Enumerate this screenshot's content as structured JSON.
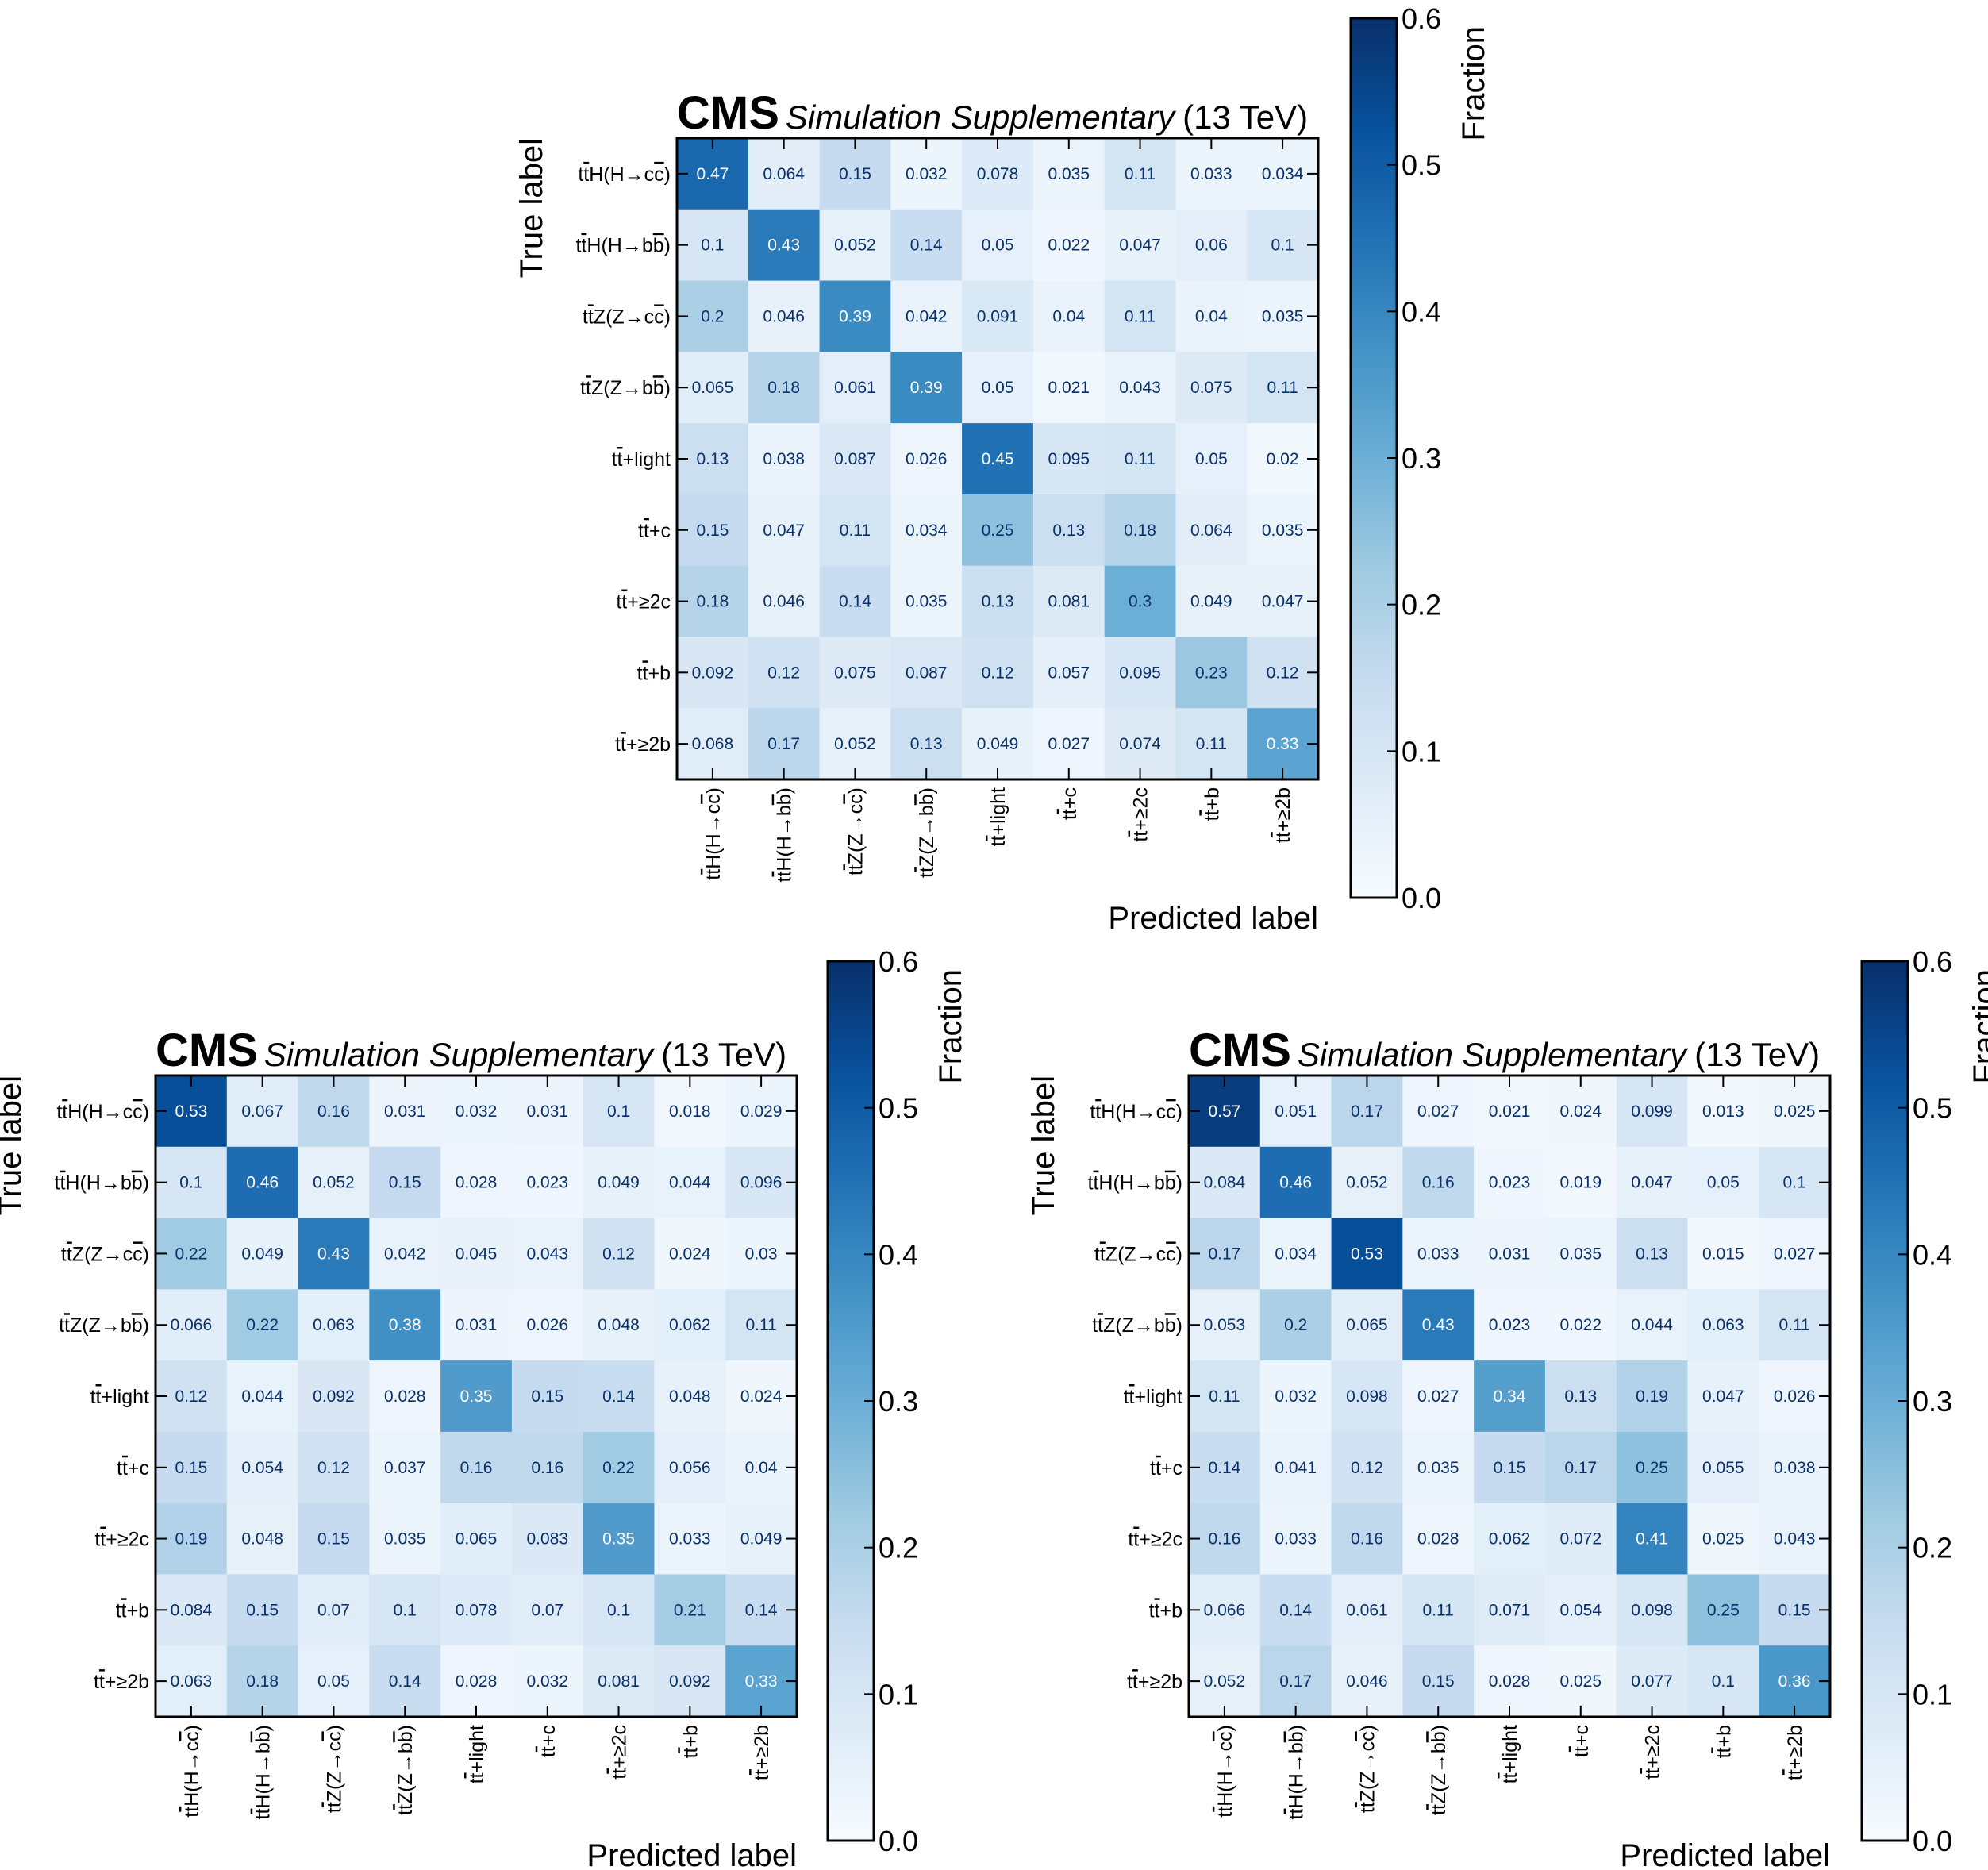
{
  "chart_data": [
    {
      "type": "heatmap",
      "experiment": "CMS",
      "status": "Simulation Supplementary",
      "energy": "(13 TeV)",
      "xlabel": "Predicted label",
      "ylabel": "True label",
      "colorbar": {
        "label": "Fraction",
        "range": [
          0.0,
          0.6
        ],
        "ticks": [
          "0.0",
          "0.1",
          "0.2",
          "0.3",
          "0.4",
          "0.5",
          "0.6"
        ],
        "colormap": "Blues",
        "low_color": "#f7fbff",
        "high_color": "#08306b"
      },
      "categories": [
        "tt̄H(H→cc̄)",
        "tt̄H(H→bb̄)",
        "tt̄Z(Z→cc̄)",
        "tt̄Z(Z→bb̄)",
        "tt̄+light",
        "tt̄+c",
        "tt̄+≥2c",
        "tt̄+b",
        "tt̄+≥2b"
      ],
      "values": [
        [
          0.47,
          0.064,
          0.15,
          0.032,
          0.078,
          0.035,
          0.11,
          0.033,
          0.034
        ],
        [
          0.1,
          0.43,
          0.052,
          0.14,
          0.05,
          0.022,
          0.047,
          0.06,
          0.1
        ],
        [
          0.2,
          0.046,
          0.39,
          0.042,
          0.091,
          0.04,
          0.11,
          0.04,
          0.035
        ],
        [
          0.065,
          0.18,
          0.061,
          0.39,
          0.05,
          0.021,
          0.043,
          0.075,
          0.11
        ],
        [
          0.13,
          0.038,
          0.087,
          0.026,
          0.45,
          0.095,
          0.11,
          0.05,
          0.02
        ],
        [
          0.15,
          0.047,
          0.11,
          0.034,
          0.25,
          0.13,
          0.18,
          0.064,
          0.035
        ],
        [
          0.18,
          0.046,
          0.14,
          0.035,
          0.13,
          0.081,
          0.3,
          0.049,
          0.047
        ],
        [
          0.092,
          0.12,
          0.075,
          0.087,
          0.12,
          0.057,
          0.095,
          0.23,
          0.12
        ],
        [
          0.068,
          0.17,
          0.052,
          0.13,
          0.049,
          0.027,
          0.074,
          0.11,
          0.33
        ]
      ]
    },
    {
      "type": "heatmap",
      "experiment": "CMS",
      "status": "Simulation Supplementary",
      "energy": "(13 TeV)",
      "xlabel": "Predicted label",
      "ylabel": "True label",
      "colorbar": {
        "label": "Fraction",
        "range": [
          0.0,
          0.6
        ],
        "ticks": [
          "0.0",
          "0.1",
          "0.2",
          "0.3",
          "0.4",
          "0.5",
          "0.6"
        ],
        "colormap": "Blues",
        "low_color": "#f7fbff",
        "high_color": "#08306b"
      },
      "categories": [
        "tt̄H(H→cc̄)",
        "tt̄H(H→bb̄)",
        "tt̄Z(Z→cc̄)",
        "tt̄Z(Z→bb̄)",
        "tt̄+light",
        "tt̄+c",
        "tt̄+≥2c",
        "tt̄+b",
        "tt̄+≥2b"
      ],
      "values": [
        [
          0.53,
          0.067,
          0.16,
          0.031,
          0.032,
          0.031,
          0.1,
          0.018,
          0.029
        ],
        [
          0.1,
          0.46,
          0.052,
          0.15,
          0.028,
          0.023,
          0.049,
          0.044,
          0.096
        ],
        [
          0.22,
          0.049,
          0.43,
          0.042,
          0.045,
          0.043,
          0.12,
          0.024,
          0.03
        ],
        [
          0.066,
          0.22,
          0.063,
          0.38,
          0.031,
          0.026,
          0.048,
          0.062,
          0.11
        ],
        [
          0.12,
          0.044,
          0.092,
          0.028,
          0.35,
          0.15,
          0.14,
          0.048,
          0.024
        ],
        [
          0.15,
          0.054,
          0.12,
          0.037,
          0.16,
          0.16,
          0.22,
          0.056,
          0.04
        ],
        [
          0.19,
          0.048,
          0.15,
          0.035,
          0.065,
          0.083,
          0.35,
          0.033,
          0.049
        ],
        [
          0.084,
          0.15,
          0.07,
          0.1,
          0.078,
          0.07,
          0.1,
          0.21,
          0.14
        ],
        [
          0.063,
          0.18,
          0.05,
          0.14,
          0.028,
          0.032,
          0.081,
          0.092,
          0.33
        ]
      ]
    },
    {
      "type": "heatmap",
      "experiment": "CMS",
      "status": "Simulation Supplementary",
      "energy": "(13 TeV)",
      "xlabel": "Predicted label",
      "ylabel": "True label",
      "colorbar": {
        "label": "Fraction",
        "range": [
          0.0,
          0.6
        ],
        "ticks": [
          "0.0",
          "0.1",
          "0.2",
          "0.3",
          "0.4",
          "0.5",
          "0.6"
        ],
        "colormap": "Blues",
        "low_color": "#f7fbff",
        "high_color": "#08306b"
      },
      "categories": [
        "tt̄H(H→cc̄)",
        "tt̄H(H→bb̄)",
        "tt̄Z(Z→cc̄)",
        "tt̄Z(Z→bb̄)",
        "tt̄+light",
        "tt̄+c",
        "tt̄+≥2c",
        "tt̄+b",
        "tt̄+≥2b"
      ],
      "values": [
        [
          0.57,
          0.051,
          0.17,
          0.027,
          0.021,
          0.024,
          0.099,
          0.013,
          0.025
        ],
        [
          0.084,
          0.46,
          0.052,
          0.16,
          0.023,
          0.019,
          0.047,
          0.05,
          0.1
        ],
        [
          0.17,
          0.034,
          0.53,
          0.033,
          0.031,
          0.035,
          0.13,
          0.015,
          0.027
        ],
        [
          0.053,
          0.2,
          0.065,
          0.43,
          0.023,
          0.022,
          0.044,
          0.063,
          0.11
        ],
        [
          0.11,
          0.032,
          0.098,
          0.027,
          0.34,
          0.13,
          0.19,
          0.047,
          0.026
        ],
        [
          0.14,
          0.041,
          0.12,
          0.035,
          0.15,
          0.17,
          0.25,
          0.055,
          0.038
        ],
        [
          0.16,
          0.033,
          0.16,
          0.028,
          0.062,
          0.072,
          0.41,
          0.025,
          0.043
        ],
        [
          0.066,
          0.14,
          0.061,
          0.11,
          0.071,
          0.054,
          0.098,
          0.25,
          0.15
        ],
        [
          0.052,
          0.17,
          0.046,
          0.15,
          0.028,
          0.025,
          0.077,
          0.1,
          0.36
        ]
      ]
    }
  ]
}
